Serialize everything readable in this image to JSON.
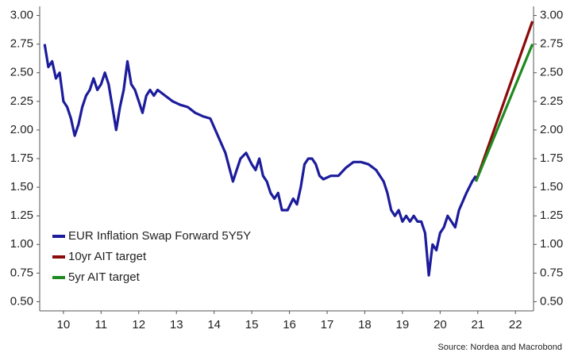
{
  "chart_data": {
    "type": "line",
    "source": "Source: Nordea and Macrobond",
    "xlim": [
      2009.87,
      2022.98
    ],
    "xticks": [
      {
        "value": 2010.5,
        "label": "10"
      },
      {
        "value": 2011.5,
        "label": "11"
      },
      {
        "value": 2012.5,
        "label": "12"
      },
      {
        "value": 2013.5,
        "label": "13"
      },
      {
        "value": 2014.5,
        "label": "14"
      },
      {
        "value": 2015.5,
        "label": "15"
      },
      {
        "value": 2016.5,
        "label": "16"
      },
      {
        "value": 2017.5,
        "label": "17"
      },
      {
        "value": 2018.5,
        "label": "18"
      },
      {
        "value": 2019.5,
        "label": "19"
      },
      {
        "value": 2020.5,
        "label": "20"
      },
      {
        "value": 2021.5,
        "label": "21"
      },
      {
        "value": 2022.5,
        "label": "22"
      }
    ],
    "ylim": [
      0.42,
      3.08
    ],
    "yticks": [
      {
        "value": 0.5,
        "label": "0.50"
      },
      {
        "value": 0.75,
        "label": "0.75"
      },
      {
        "value": 1,
        "label": "1.00"
      },
      {
        "value": 1.25,
        "label": "1.25"
      },
      {
        "value": 1.5,
        "label": "1.50"
      },
      {
        "value": 1.75,
        "label": "1.75"
      },
      {
        "value": 2,
        "label": "2.00"
      },
      {
        "value": 2.25,
        "label": "2.25"
      },
      {
        "value": 2.5,
        "label": "2.50"
      },
      {
        "value": 2.75,
        "label": "2.75"
      },
      {
        "value": 3,
        "label": "3.00"
      }
    ],
    "y2lim": [
      0.42,
      3.08
    ],
    "y2ticks": [
      {
        "value": 0.5,
        "label": "0.50"
      },
      {
        "value": 0.75,
        "label": "0.75"
      },
      {
        "value": 1,
        "label": "1.00"
      },
      {
        "value": 1.25,
        "label": "1.25"
      },
      {
        "value": 1.5,
        "label": "1.50"
      },
      {
        "value": 1.75,
        "label": "1.75"
      },
      {
        "value": 2,
        "label": "2.00"
      },
      {
        "value": 2.25,
        "label": "2.25"
      },
      {
        "value": 2.5,
        "label": "2.50"
      },
      {
        "value": 2.75,
        "label": "2.75"
      },
      {
        "value": 3,
        "label": "3.00"
      }
    ],
    "series": [
      {
        "name": "EUR Inflation Swap Forward 5Y5Y",
        "color": "#1c1c9c",
        "x": [
          2010.0,
          2010.1,
          2010.2,
          2010.3,
          2010.4,
          2010.5,
          2010.6,
          2010.7,
          2010.8,
          2010.9,
          2011.0,
          2011.1,
          2011.2,
          2011.3,
          2011.4,
          2011.5,
          2011.6,
          2011.7,
          2011.8,
          2011.9,
          2012.0,
          2012.1,
          2012.2,
          2012.3,
          2012.4,
          2012.5,
          2012.6,
          2012.7,
          2012.8,
          2012.9,
          2013.0,
          2013.2,
          2013.4,
          2013.6,
          2013.8,
          2014.0,
          2014.2,
          2014.4,
          2014.6,
          2014.8,
          2015.0,
          2015.1,
          2015.2,
          2015.35,
          2015.5,
          2015.6,
          2015.7,
          2015.8,
          2015.9,
          2016.0,
          2016.1,
          2016.2,
          2016.3,
          2016.45,
          2016.6,
          2016.7,
          2016.8,
          2016.9,
          2017.0,
          2017.1,
          2017.2,
          2017.3,
          2017.4,
          2017.6,
          2017.8,
          2018.0,
          2018.2,
          2018.4,
          2018.6,
          2018.8,
          2019.0,
          2019.1,
          2019.2,
          2019.3,
          2019.4,
          2019.5,
          2019.6,
          2019.7,
          2019.8,
          2019.9,
          2020.0,
          2020.1,
          2020.2,
          2020.3,
          2020.4,
          2020.5,
          2020.6,
          2020.7,
          2020.8,
          2020.9,
          2021.0,
          2021.2,
          2021.35,
          2021.45
        ],
        "values": [
          2.75,
          2.55,
          2.6,
          2.45,
          2.5,
          2.25,
          2.2,
          2.1,
          1.95,
          2.05,
          2.2,
          2.3,
          2.35,
          2.45,
          2.35,
          2.4,
          2.5,
          2.4,
          2.2,
          2.0,
          2.2,
          2.35,
          2.6,
          2.4,
          2.35,
          2.25,
          2.15,
          2.3,
          2.35,
          2.3,
          2.35,
          2.3,
          2.25,
          2.22,
          2.2,
          2.15,
          2.12,
          2.1,
          1.95,
          1.8,
          1.55,
          1.65,
          1.75,
          1.8,
          1.7,
          1.65,
          1.75,
          1.6,
          1.55,
          1.45,
          1.4,
          1.45,
          1.3,
          1.3,
          1.4,
          1.35,
          1.5,
          1.7,
          1.75,
          1.75,
          1.7,
          1.6,
          1.57,
          1.6,
          1.6,
          1.67,
          1.72,
          1.72,
          1.7,
          1.65,
          1.55,
          1.45,
          1.3,
          1.25,
          1.3,
          1.2,
          1.25,
          1.2,
          1.25,
          1.2,
          1.2,
          1.1,
          0.73,
          1.0,
          0.95,
          1.1,
          1.15,
          1.25,
          1.2,
          1.15,
          1.3,
          1.45,
          1.55,
          1.6
        ]
      },
      {
        "name": "10yr AIT target",
        "color": "#8b0a0a",
        "x": [
          2021.45,
          2022.95
        ],
        "values": [
          1.55,
          2.95
        ]
      },
      {
        "name": "5yr AIT target",
        "color": "#1f8a1f",
        "x": [
          2021.45,
          2022.95
        ],
        "values": [
          1.55,
          2.75
        ]
      }
    ],
    "legend": "lower left"
  }
}
